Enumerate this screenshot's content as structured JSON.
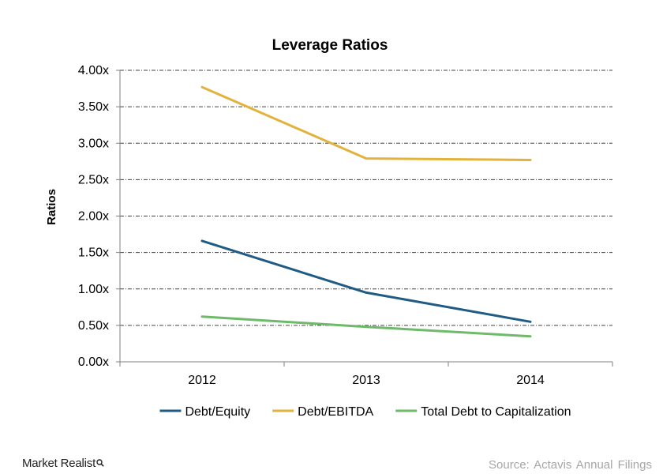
{
  "chart_data": {
    "type": "line",
    "title": "Leverage Ratios",
    "xlabel": "",
    "ylabel": "Ratios",
    "categories": [
      "2012",
      "2013",
      "2014"
    ],
    "ylim": [
      0,
      4
    ],
    "yticks": [
      "0.00x",
      "0.50x",
      "1.00x",
      "1.50x",
      "2.00x",
      "2.50x",
      "3.00x",
      "3.50x",
      "4.00x"
    ],
    "grid": true,
    "legend": "bottom",
    "series": [
      {
        "name": "Debt/Equity",
        "color": "#1f5b85",
        "values": [
          1.66,
          0.95,
          0.55
        ]
      },
      {
        "name": "Debt/EBITDA",
        "color": "#e3b23c",
        "values": [
          3.77,
          2.79,
          2.77
        ]
      },
      {
        "name": "Total Debt to Capitalization",
        "color": "#6fba6a",
        "values": [
          0.62,
          0.48,
          0.35
        ]
      }
    ]
  },
  "footer": {
    "brand": "Market Realist",
    "brand_icon": "magnifier-icon",
    "source": "Source:  Actavis  Annual  Filings"
  }
}
